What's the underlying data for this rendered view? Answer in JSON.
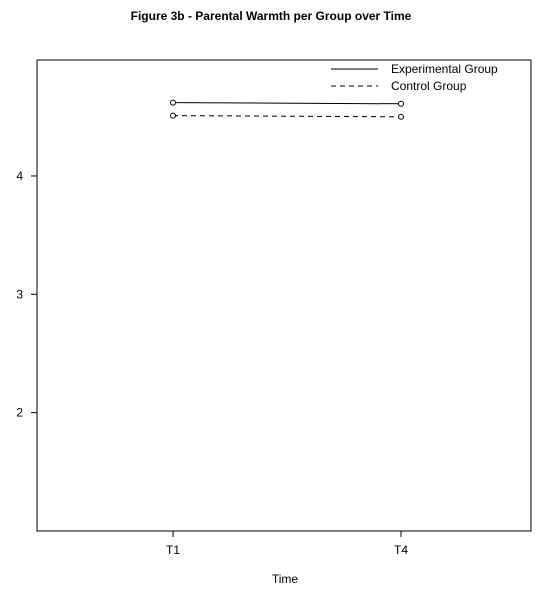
{
  "chart_data": {
    "type": "line",
    "title": "Figure 3b - Parental Warmth per Group over Time",
    "xlabel": "Time",
    "ylabel": "",
    "categories": [
      "T1",
      "T4"
    ],
    "ylim": [
      1,
      4.98
    ],
    "yticks": [
      "2",
      "3",
      "4"
    ],
    "grid": false,
    "legend_position": "top-right",
    "series": [
      {
        "name": "Experimental Group",
        "values": [
          4.62,
          4.61
        ],
        "line_style": "solid",
        "color": "#000000"
      },
      {
        "name": "Control Group",
        "values": [
          4.51,
          4.5
        ],
        "line_style": "dashed",
        "color": "#000000"
      }
    ]
  }
}
